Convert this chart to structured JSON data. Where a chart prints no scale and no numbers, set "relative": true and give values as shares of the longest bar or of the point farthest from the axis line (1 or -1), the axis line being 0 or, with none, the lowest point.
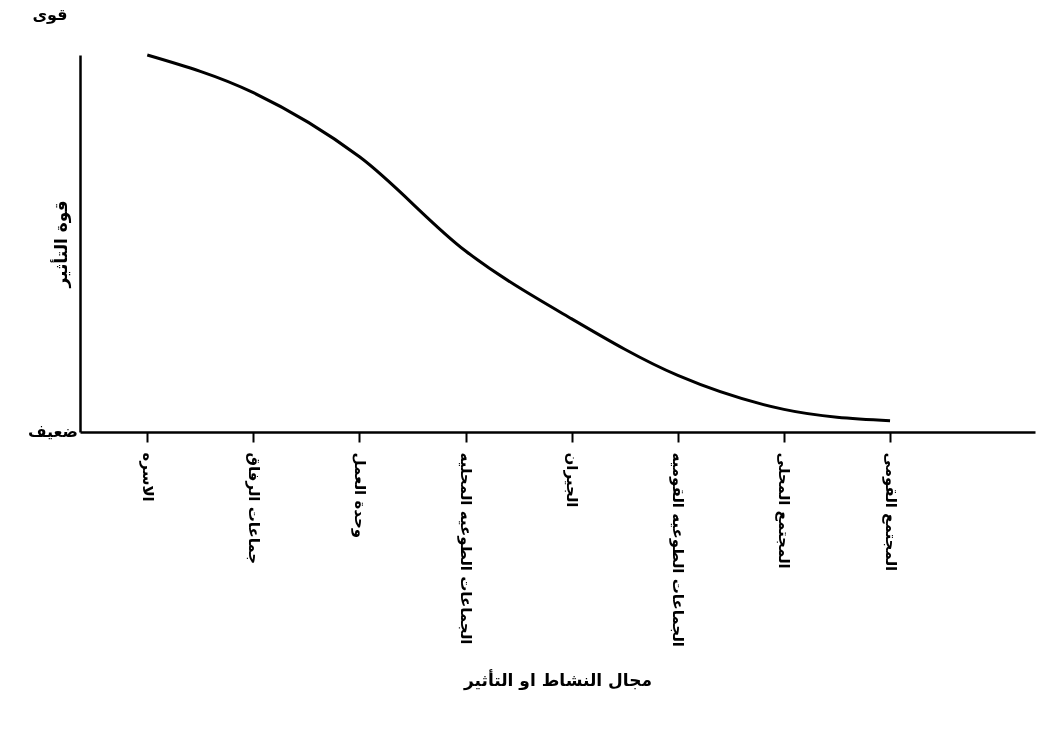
{
  "chart_data": {
    "type": "line",
    "relative": true,
    "xlabel": "مجال النشاط او التأثير",
    "ylabel": "قوة التأثير",
    "categories": [
      "الاسره",
      "جماعات الرفاق",
      "وحدة العمل",
      "الجماعات الطوعيه المحليه",
      "الجيران",
      "الجماعات الطوعيه القوميه",
      "المجتمع المحلى",
      "المجتمع القومى"
    ],
    "series": [
      {
        "color": "#000000",
        "values": [
          1,
          0.9,
          0.73,
          0.48,
          0.3,
          0.15,
          0.06,
          0.03
        ]
      }
    ],
    "annotations": [
      "قوى",
      "ضعيف"
    ]
  }
}
